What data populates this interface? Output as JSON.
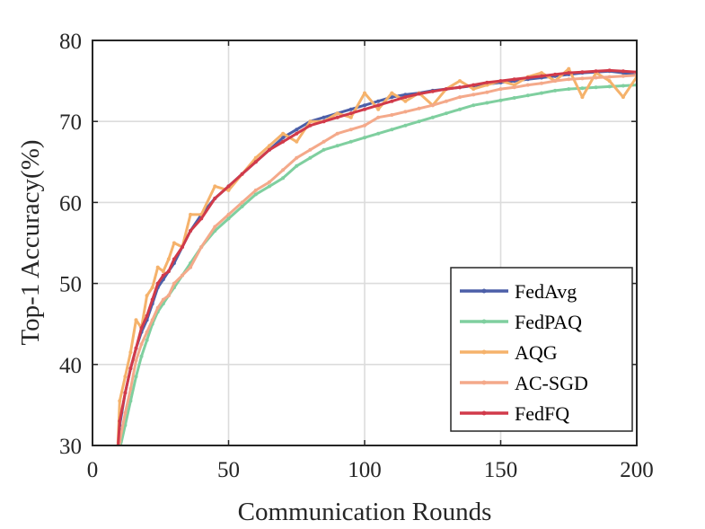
{
  "chart_data": {
    "type": "line",
    "xlabel": "Communication Rounds",
    "ylabel": "Top-1 Accuracy(%)",
    "xlim": [
      0,
      200
    ],
    "ylim": [
      30,
      80
    ],
    "xticks": [
      0,
      50,
      100,
      150,
      200
    ],
    "yticks": [
      30,
      40,
      50,
      60,
      70,
      80
    ],
    "grid": true,
    "legend_position": "bottom-right",
    "series": [
      {
        "name": "FedAvg",
        "color": "#4c5fa8",
        "x": [
          9,
          10,
          12,
          14,
          16,
          18,
          20,
          22,
          24,
          26,
          28,
          30,
          33,
          36,
          40,
          45,
          50,
          55,
          60,
          65,
          70,
          75,
          80,
          85,
          90,
          95,
          100,
          105,
          110,
          115,
          120,
          125,
          130,
          135,
          140,
          145,
          150,
          155,
          160,
          165,
          170,
          175,
          180,
          185,
          190,
          195,
          200
        ],
        "y": [
          27.5,
          32.5,
          36.5,
          39.5,
          42,
          44,
          45.5,
          47.5,
          49.5,
          50.5,
          51.5,
          52.5,
          54.5,
          56.5,
          58.5,
          60.5,
          62,
          63.5,
          65,
          66.5,
          68,
          69,
          70,
          70.5,
          71,
          71.5,
          72,
          72.5,
          73,
          73.3,
          73.5,
          73.8,
          74,
          74.2,
          74.4,
          74.6,
          74.8,
          75,
          75.2,
          75.4,
          75.6,
          75.8,
          76,
          76.1,
          76.2,
          76,
          75.7
        ]
      },
      {
        "name": "FedPAQ",
        "color": "#7fcf9f",
        "x": [
          9,
          10,
          12,
          14,
          16,
          18,
          20,
          22,
          24,
          26,
          28,
          30,
          33,
          36,
          40,
          45,
          50,
          55,
          60,
          65,
          70,
          75,
          80,
          85,
          90,
          95,
          100,
          105,
          110,
          115,
          120,
          125,
          130,
          135,
          140,
          145,
          150,
          155,
          160,
          165,
          170,
          175,
          180,
          185,
          190,
          195,
          200
        ],
        "y": [
          27,
          29.5,
          32.5,
          35.5,
          38.5,
          41,
          43,
          45,
          46.5,
          47.5,
          48.5,
          49.5,
          51,
          52.5,
          54.5,
          56.5,
          58,
          59.5,
          61,
          62,
          63,
          64.5,
          65.5,
          66.5,
          67,
          67.5,
          68,
          68.5,
          69,
          69.5,
          70,
          70.5,
          71,
          71.5,
          72,
          72.3,
          72.6,
          72.9,
          73.2,
          73.5,
          73.8,
          74,
          74.1,
          74.2,
          74.3,
          74.4,
          74.5
        ]
      },
      {
        "name": "AQG",
        "color": "#f5b26b",
        "x": [
          9,
          10,
          12,
          14,
          16,
          18,
          20,
          22,
          24,
          26,
          28,
          30,
          33,
          36,
          40,
          45,
          50,
          55,
          60,
          65,
          70,
          75,
          80,
          85,
          90,
          95,
          100,
          105,
          110,
          115,
          120,
          125,
          130,
          135,
          140,
          145,
          150,
          155,
          160,
          165,
          170,
          175,
          180,
          185,
          190,
          195,
          200
        ],
        "y": [
          27.5,
          35.5,
          38.5,
          41.5,
          45.5,
          44.5,
          48.5,
          49.5,
          52,
          51.5,
          53,
          55,
          54.5,
          58.5,
          58.5,
          62,
          61.5,
          63.5,
          65.5,
          67,
          68.5,
          67.5,
          70,
          70,
          71,
          70.5,
          73.5,
          71.5,
          73.5,
          72.5,
          73.5,
          72,
          74,
          75,
          74,
          74.5,
          75,
          74.5,
          75.5,
          76,
          75,
          76.5,
          73,
          76,
          75,
          73,
          75.5
        ]
      },
      {
        "name": "AC-SGD",
        "color": "#f4a98a",
        "x": [
          9,
          10,
          12,
          14,
          16,
          18,
          20,
          22,
          24,
          26,
          28,
          30,
          33,
          36,
          40,
          45,
          50,
          55,
          60,
          65,
          70,
          75,
          80,
          85,
          90,
          95,
          100,
          105,
          110,
          115,
          120,
          125,
          130,
          135,
          140,
          145,
          150,
          155,
          160,
          165,
          170,
          175,
          180,
          185,
          190,
          195,
          200
        ],
        "y": [
          27,
          30.5,
          34,
          37,
          40.5,
          42.5,
          44,
          45.5,
          47,
          48,
          48.5,
          50,
          51,
          52,
          54.5,
          57,
          58.5,
          60,
          61.5,
          62.5,
          64,
          65.5,
          66.5,
          67.5,
          68.5,
          69,
          69.5,
          70.5,
          70.8,
          71.2,
          71.6,
          72,
          72.5,
          73,
          73.3,
          73.6,
          74,
          74.2,
          74.5,
          74.7,
          75,
          75.2,
          75.3,
          75.4,
          75.5,
          75.6,
          75.7
        ]
      },
      {
        "name": "FedFQ",
        "color": "#d13a4a",
        "x": [
          9,
          10,
          12,
          14,
          16,
          18,
          20,
          22,
          24,
          26,
          28,
          30,
          33,
          36,
          40,
          45,
          50,
          55,
          60,
          65,
          70,
          75,
          80,
          85,
          90,
          95,
          100,
          105,
          110,
          115,
          120,
          125,
          130,
          135,
          140,
          145,
          150,
          155,
          160,
          165,
          170,
          175,
          180,
          185,
          190,
          195,
          200
        ],
        "y": [
          28,
          33,
          36.5,
          39.5,
          42,
          44.5,
          46,
          48,
          50,
          51,
          51.5,
          53,
          54.5,
          56.5,
          58,
          60.5,
          62,
          63.5,
          65,
          66.5,
          67.5,
          68.5,
          69.5,
          70,
          70.5,
          71,
          71.5,
          72,
          72.5,
          73,
          73.4,
          73.7,
          74,
          74.2,
          74.5,
          74.8,
          75,
          75.2,
          75.4,
          75.6,
          75.8,
          76,
          76.1,
          76.2,
          76.3,
          76.2,
          76.1
        ]
      }
    ]
  }
}
